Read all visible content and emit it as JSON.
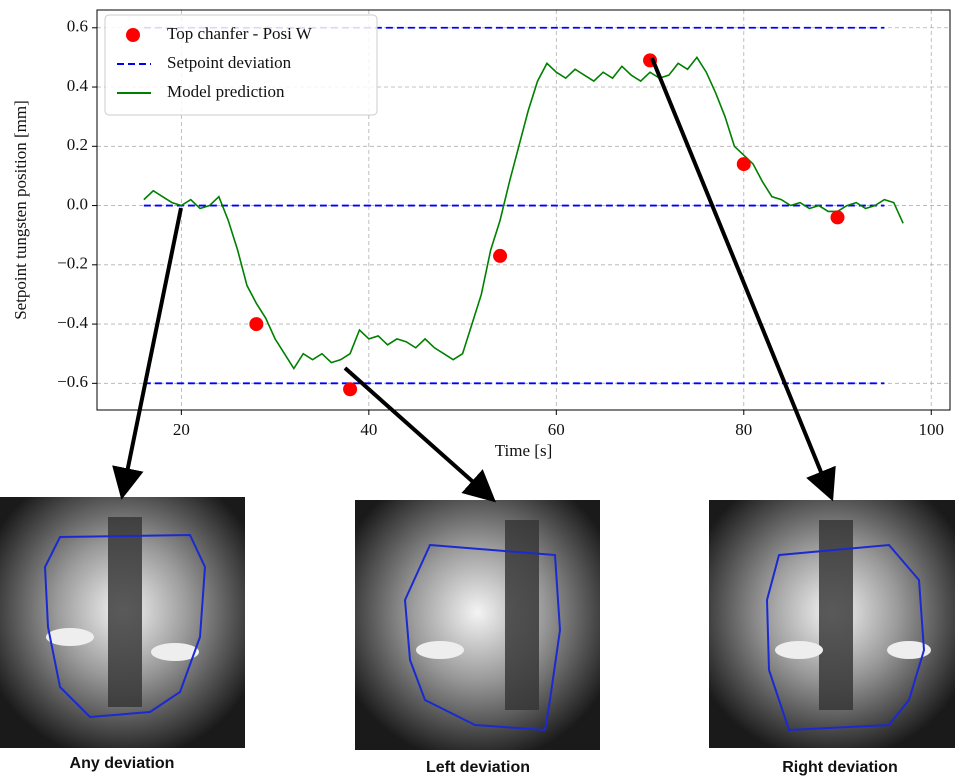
{
  "chart_data": {
    "type": "line",
    "xlabel": "Time [s]",
    "ylabel": "Setpoint tungsten position [mm]",
    "xlim": [
      11,
      102
    ],
    "ylim": [
      -0.69,
      0.66
    ],
    "xticks": [
      20,
      40,
      60,
      80,
      100
    ],
    "yticks": [
      {
        "value": -0.6,
        "label": "−0.6"
      },
      {
        "value": -0.4,
        "label": "−0.4"
      },
      {
        "value": -0.2,
        "label": "−0.2"
      },
      {
        "value": 0,
        "label": "0.0"
      },
      0.2,
      0.4,
      0.6
    ],
    "grid": true,
    "legend": "upper left",
    "series": [
      {
        "name": "Top chanfer - Posi W",
        "type": "scatter",
        "color": "#ff0000",
        "x": [
          28,
          38,
          54,
          70,
          80,
          90
        ],
        "values": [
          -0.4,
          -0.62,
          -0.17,
          0.49,
          0.14,
          -0.04
        ]
      },
      {
        "name": "Setpoint deviation",
        "type": "dashed",
        "color": "#0000ff",
        "x": [
          16,
          95,
          null,
          16,
          95,
          null,
          16,
          95
        ],
        "values": [
          0.6,
          0.6,
          null,
          0,
          0,
          null,
          -0.6,
          -0.6
        ]
      },
      {
        "name": "Model prediction",
        "type": "line",
        "color": "#008000",
        "x": [
          16,
          17,
          18,
          19,
          20,
          21,
          22,
          23,
          24,
          25,
          26,
          27,
          28,
          29,
          30,
          31,
          32,
          33,
          34,
          35,
          36,
          37,
          38,
          39,
          40,
          41,
          42,
          43,
          44,
          45,
          46,
          47,
          48,
          49,
          50,
          51,
          52,
          53,
          54,
          55,
          56,
          57,
          58,
          59,
          60,
          61,
          62,
          63,
          64,
          65,
          66,
          67,
          68,
          69,
          70,
          71,
          72,
          73,
          74,
          75,
          76,
          77,
          78,
          79,
          80,
          81,
          82,
          83,
          84,
          85,
          86,
          87,
          88,
          89,
          90,
          91,
          92,
          93,
          94,
          95,
          96,
          97
        ],
        "values": [
          0.02,
          0.05,
          0.03,
          0.01,
          0.0,
          0.02,
          -0.01,
          0.0,
          0.03,
          -0.05,
          -0.15,
          -0.27,
          -0.33,
          -0.38,
          -0.45,
          -0.5,
          -0.55,
          -0.5,
          -0.52,
          -0.5,
          -0.53,
          -0.52,
          -0.5,
          -0.42,
          -0.45,
          -0.44,
          -0.47,
          -0.45,
          -0.46,
          -0.48,
          -0.45,
          -0.48,
          -0.5,
          -0.52,
          -0.5,
          -0.4,
          -0.3,
          -0.15,
          -0.05,
          0.08,
          0.2,
          0.32,
          0.42,
          0.48,
          0.45,
          0.43,
          0.46,
          0.44,
          0.42,
          0.45,
          0.43,
          0.47,
          0.44,
          0.42,
          0.45,
          0.43,
          0.44,
          0.48,
          0.46,
          0.5,
          0.45,
          0.38,
          0.3,
          0.2,
          0.17,
          0.14,
          0.08,
          0.03,
          0.02,
          0.0,
          0.01,
          -0.01,
          0.0,
          -0.02,
          -0.02,
          0.0,
          0.01,
          -0.01,
          0.0,
          0.02,
          0.01,
          -0.06
        ]
      }
    ]
  },
  "images": [
    {
      "caption": "Any deviation"
    },
    {
      "caption": "Left deviation"
    },
    {
      "caption": "Right deviation"
    }
  ]
}
